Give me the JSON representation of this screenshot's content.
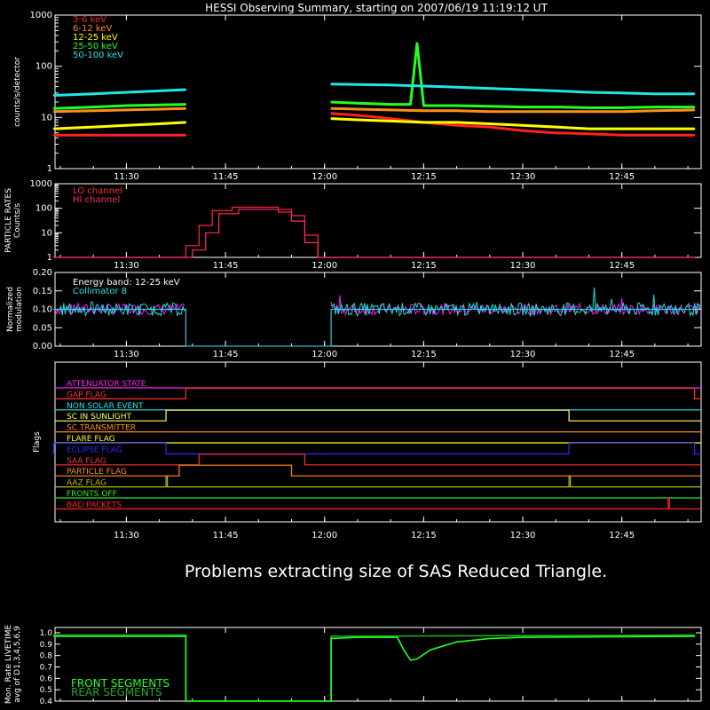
{
  "title": "HESSI Observing Summary, starting on 2007/06/19 11:19:12 UT",
  "error_message": "Problems extracting size of SAS Reduced Triangle.",
  "time_ticks": [
    "11:30",
    "11:45",
    "12:00",
    "12:15",
    "12:30",
    "12:45"
  ],
  "colors": {
    "bg": "#000000",
    "axis": "#ffffff",
    "band_3_6": "#ff2020",
    "band_6_12": "#ff8c1a",
    "band_12_25": "#ffff00",
    "band_25_50": "#22ff22",
    "band_50_100": "#22e6e6",
    "pr_lo": "#ff2a2a",
    "pr_hi": "#ff2a6e",
    "mod_energy": "#ff22ff",
    "mod_coll": "#22e6e6",
    "live_front": "#22ff22",
    "live_rear": "#22aa22"
  },
  "chart_data": [
    {
      "id": "count-rates",
      "type": "line",
      "ylabel": "counts/s/detector",
      "yscale": "log",
      "ylim": [
        1,
        1000
      ],
      "yticks": [
        "1",
        "10",
        "100",
        "1000"
      ],
      "x_unit": "UT",
      "series": [
        {
          "name": "3-6 keV",
          "color": "#ff2020",
          "segments": [
            {
              "x": [
                "11:19",
                "11:25",
                "11:30",
                "11:35",
                "11:39"
              ],
              "y": [
                4.5,
                4.5,
                4.5,
                4.5,
                4.5
              ]
            },
            {
              "x": [
                "12:01",
                "12:05",
                "12:10",
                "12:15",
                "12:20",
                "12:25",
                "12:30",
                "12:35",
                "12:40",
                "12:45",
                "12:50",
                "12:56"
              ],
              "y": [
                12,
                11,
                9.5,
                8,
                7,
                6.5,
                5.5,
                5,
                4.8,
                4.5,
                4.5,
                4.5
              ]
            }
          ]
        },
        {
          "name": "6-12 keV",
          "color": "#ff8c1a",
          "segments": [
            {
              "x": [
                "11:19",
                "11:25",
                "11:30",
                "11:35",
                "11:39"
              ],
              "y": [
                13,
                13.5,
                14,
                14.5,
                15
              ]
            },
            {
              "x": [
                "12:01",
                "12:05",
                "12:10",
                "12:15",
                "12:20",
                "12:25",
                "12:30",
                "12:35",
                "12:40",
                "12:45",
                "12:50",
                "12:56"
              ],
              "y": [
                15,
                14.5,
                14,
                13.5,
                13.5,
                13,
                13,
                13,
                13,
                13,
                13.5,
                14
              ]
            }
          ]
        },
        {
          "name": "12-25 keV",
          "color": "#ffff00",
          "segments": [
            {
              "x": [
                "11:19",
                "11:25",
                "11:30",
                "11:35",
                "11:39"
              ],
              "y": [
                6,
                6.5,
                7,
                7.5,
                8
              ]
            },
            {
              "x": [
                "12:01",
                "12:05",
                "12:10",
                "12:15",
                "12:20",
                "12:25",
                "12:30",
                "12:35",
                "12:40",
                "12:45",
                "12:50",
                "12:56"
              ],
              "y": [
                9.5,
                9,
                8.5,
                8,
                8,
                7.5,
                7,
                6.5,
                6,
                6,
                6,
                6
              ]
            }
          ]
        },
        {
          "name": "25-50 keV",
          "color": "#22ff22",
          "segments": [
            {
              "x": [
                "11:19",
                "11:25",
                "11:30",
                "11:35",
                "11:39"
              ],
              "y": [
                15,
                16,
                17,
                17.5,
                18
              ]
            },
            {
              "x": [
                "12:01",
                "12:05",
                "12:10",
                "12:13",
                "12:14",
                "12:15",
                "12:20",
                "12:25",
                "12:30",
                "12:35",
                "12:40",
                "12:45",
                "12:50",
                "12:56"
              ],
              "y": [
                20,
                19,
                18,
                18,
                280,
                17,
                17,
                16.5,
                16,
                16,
                15.5,
                15.5,
                16,
                16
              ]
            }
          ]
        },
        {
          "name": "50-100 keV",
          "color": "#22e6e6",
          "segments": [
            {
              "x": [
                "11:19",
                "11:25",
                "11:30",
                "11:35",
                "11:39"
              ],
              "y": [
                27,
                29,
                31,
                33,
                35
              ]
            },
            {
              "x": [
                "12:01",
                "12:05",
                "12:10",
                "12:15",
                "12:20",
                "12:25",
                "12:30",
                "12:35",
                "12:40",
                "12:45",
                "12:50",
                "12:56"
              ],
              "y": [
                45,
                44,
                43,
                41,
                39,
                37,
                35,
                33,
                31,
                30,
                29,
                29
              ]
            }
          ]
        }
      ]
    },
    {
      "id": "particle-rates",
      "type": "line",
      "ylabel": "PARTICLE RATES Counts/s",
      "yscale": "log",
      "ylim": [
        1,
        1000
      ],
      "yticks": [
        "1",
        "10",
        "100",
        "1000"
      ],
      "series": [
        {
          "name": "LO channel",
          "color": "#ff2a2a",
          "x": [
            "11:19",
            "11:37",
            "11:39",
            "11:41",
            "11:43",
            "11:46",
            "11:50",
            "11:53",
            "11:55",
            "11:57",
            "11:59",
            "12:56"
          ],
          "y": [
            1,
            1,
            3,
            20,
            80,
            110,
            110,
            90,
            50,
            8,
            1,
            1
          ]
        },
        {
          "name": "HI channel",
          "color": "#ff2a6e",
          "x": [
            "11:19",
            "11:38",
            "11:40",
            "11:42",
            "11:44",
            "11:47",
            "11:50",
            "11:53",
            "11:55",
            "11:57",
            "11:59",
            "12:56"
          ],
          "y": [
            1,
            1,
            2,
            10,
            60,
            90,
            90,
            70,
            30,
            4,
            1,
            1
          ]
        }
      ]
    },
    {
      "id": "modulation",
      "type": "line",
      "ylabel": "Normalized modulation",
      "ylim": [
        0,
        0.2
      ],
      "yticks": [
        "0.00",
        "0.05",
        "0.10",
        "0.15",
        "0.20"
      ],
      "annotations": [
        "Energy band: 12-25 keV",
        "Collimator 8"
      ],
      "series": [
        {
          "name": "Energy band: 12-25 keV",
          "color": "#ff22ff",
          "x": [
            "11:19",
            "11:39",
            "11:39",
            "12:01",
            "12:01",
            "12:56"
          ],
          "y": [
            0.1,
            0.1,
            0,
            0,
            0.1,
            0.1
          ]
        },
        {
          "name": "Collimator 8",
          "color": "#22e6e6",
          "x": [
            "11:19",
            "11:39",
            "11:39",
            "12:01",
            "12:01",
            "12:56"
          ],
          "y": [
            0.1,
            0.1,
            0,
            0,
            0.1,
            0.1
          ]
        }
      ]
    },
    {
      "id": "flags",
      "type": "flags",
      "ylabel": "Flags",
      "series": [
        {
          "name": "ATTENUATOR STATE",
          "color": "#ff22ff",
          "on": []
        },
        {
          "name": "GAP FLAG",
          "color": "#ff3030",
          "on": [
            [
              "11:39",
              "12:56"
            ]
          ]
        },
        {
          "name": "NON SOLAR EVENT",
          "color": "#22e6e6",
          "on": []
        },
        {
          "name": "SC IN SUNLIGHT",
          "color": "#ffff60",
          "on": [
            [
              "11:36",
              "12:37"
            ]
          ]
        },
        {
          "name": "SC TRANSMITTER",
          "color": "#ff8c1a",
          "on": []
        },
        {
          "name": "FLARE FLAG",
          "color": "#ffff00",
          "on": []
        },
        {
          "name": "ECLIPSE FLAG",
          "color": "#2a2aff",
          "on": [
            [
              "11:19",
              "11:36"
            ],
            [
              "12:37",
              "12:56"
            ]
          ]
        },
        {
          "name": "SAA FLAG",
          "color": "#ff3030",
          "on": [
            [
              "11:41",
              "11:57"
            ]
          ]
        },
        {
          "name": "PARTICLE FLAG",
          "color": "#ff8c1a",
          "on": [
            [
              "11:38",
              "11:55"
            ]
          ]
        },
        {
          "name": "AAZ FLAG",
          "color": "#bbbb00",
          "on": [
            [
              "11:36",
              "11:36"
            ],
            [
              "12:37",
              "12:37"
            ]
          ]
        },
        {
          "name": "FRONTS OFF",
          "color": "#22ee22",
          "on": []
        },
        {
          "name": "BAD PACKETS",
          "color": "#ff2020",
          "on": [
            [
              "12:52",
              "12:52"
            ]
          ]
        }
      ]
    },
    {
      "id": "livetime",
      "type": "line",
      "ylabel": "Mon. Rate LIVETIME avg of D1,3,4,5,6,9",
      "ylim": [
        0.4,
        1.0
      ],
      "yticks": [
        "0.4",
        "0.5",
        "0.6",
        "0.7",
        "0.8",
        "0.9",
        "1.0"
      ],
      "series": [
        {
          "name": "FRONT SEGMENTS",
          "color": "#22ff22",
          "x": [
            "11:19",
            "11:39",
            "11:39",
            "12:01",
            "12:01",
            "12:05",
            "12:11",
            "12:12",
            "12:13",
            "12:14",
            "12:16",
            "12:20",
            "12:25",
            "12:30",
            "12:56"
          ],
          "y": [
            0.97,
            0.97,
            0,
            0,
            0.95,
            0.96,
            0.96,
            0.85,
            0.76,
            0.77,
            0.85,
            0.92,
            0.95,
            0.96,
            0.97
          ]
        },
        {
          "name": "REAR SEGMENTS",
          "color": "#22aa22",
          "x": [
            "11:19",
            "11:39",
            "11:39",
            "12:01",
            "12:01",
            "12:56"
          ],
          "y": [
            0.98,
            0.98,
            0,
            0,
            0.97,
            0.98
          ]
        }
      ]
    }
  ]
}
